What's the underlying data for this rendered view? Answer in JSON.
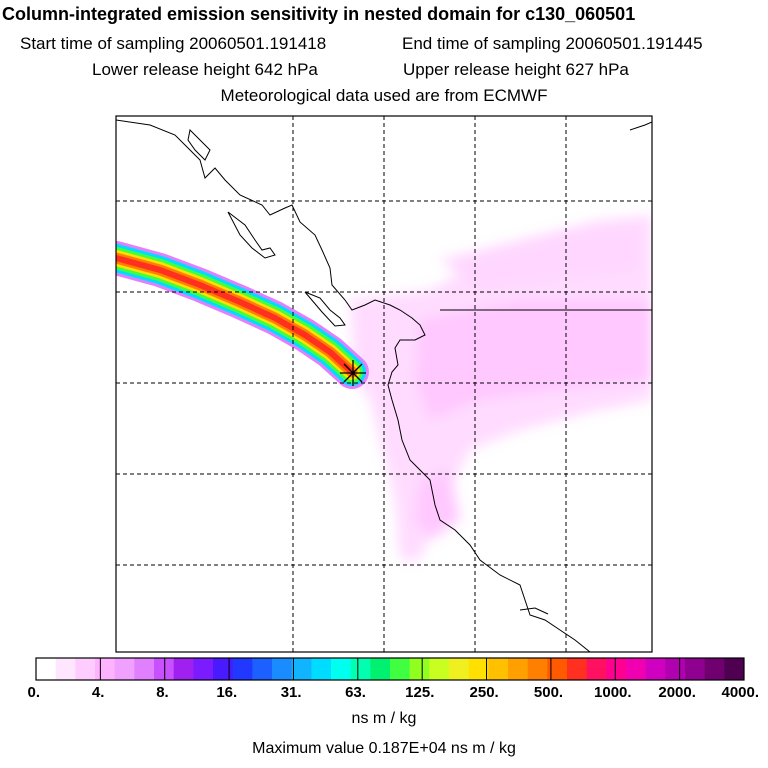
{
  "header": {
    "title": "Column-integrated emission sensitivity in nested domain for c130_060501",
    "start_label": "Start time of sampling 20060501.191418",
    "end_label": "End time of sampling 20060501.191445",
    "lower_label": "Lower release height  642 hPa",
    "upper_label": "Upper release height  627 hPa",
    "met_label": "Meteorological data used are from ECMWF"
  },
  "legend": {
    "labels": [
      "0.",
      "4.",
      "8.",
      "16.",
      "31.",
      "63.",
      "125.",
      "250.",
      "500.",
      "1000.",
      "2000.",
      "4000."
    ],
    "units": "ns m / kg",
    "max_value": "Maximum value  0.187E+04 ns m / kg",
    "colors": [
      "#ffffff",
      "#ffe6ff",
      "#ffccff",
      "#ffb3ff",
      "#f0a0ff",
      "#e080ff",
      "#c850ff",
      "#a020f0",
      "#7a1cff",
      "#4a1aff",
      "#2038ff",
      "#1c60ff",
      "#1a8cff",
      "#10b4ff",
      "#00dcff",
      "#00ffee",
      "#00ffb0",
      "#00f070",
      "#40ff40",
      "#90ff20",
      "#c8ff20",
      "#f0f020",
      "#ffe000",
      "#ffc000",
      "#ffa000",
      "#ff8000",
      "#ff5a00",
      "#ff3020",
      "#ff1060",
      "#ff0090",
      "#f000b0",
      "#d000c0",
      "#b000b0",
      "#900090",
      "#700070",
      "#500050"
    ]
  },
  "map": {
    "receptor_marker": "star-cross",
    "plume_colors": [
      "#e080ff",
      "#00dcff",
      "#40ff40",
      "#ffe000",
      "#ff8000",
      "#ff3020"
    ]
  }
}
